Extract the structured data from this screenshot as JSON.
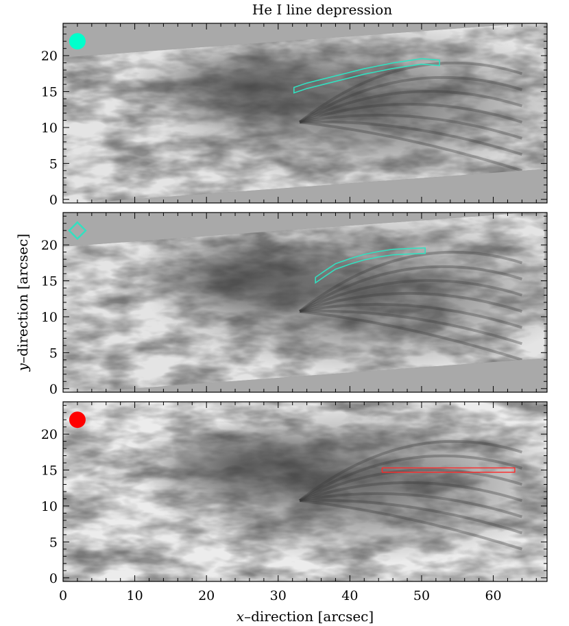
{
  "chart_data": [
    {
      "type": "heatmap",
      "panel": 1,
      "title": "He I line depression",
      "xlim": [
        0,
        67.5
      ],
      "ylim": [
        -0.5,
        24.5
      ],
      "xticks": [
        0,
        10,
        20,
        30,
        40,
        50,
        60
      ],
      "yticks": [
        0,
        5,
        10,
        15,
        20
      ],
      "marker": {
        "shape": "filled-circle",
        "x": 2,
        "y": 22,
        "color": "#00ffcc"
      },
      "contour": {
        "color": "#33e0c0",
        "points": [
          [
            32.2,
            15.2
          ],
          [
            34,
            15.8
          ],
          [
            36,
            16.3
          ],
          [
            38,
            16.8
          ],
          [
            40,
            17.3
          ],
          [
            42,
            17.8
          ],
          [
            44,
            18.2
          ],
          [
            46,
            18.6
          ],
          [
            48,
            18.9
          ],
          [
            50,
            19.2
          ],
          [
            52.5,
            19.0
          ]
        ]
      },
      "colormap": "gray",
      "gray_corners": true
    },
    {
      "type": "heatmap",
      "panel": 2,
      "xlim": [
        0,
        67.5
      ],
      "ylim": [
        -0.5,
        24.5
      ],
      "xticks": [
        0,
        10,
        20,
        30,
        40,
        50,
        60
      ],
      "yticks": [
        0,
        5,
        10,
        15,
        20
      ],
      "marker": {
        "shape": "open-diamond",
        "x": 2,
        "y": 22,
        "color": "#33e0c0"
      },
      "contour": {
        "color": "#33e0c0",
        "points": [
          [
            35.2,
            15.1
          ],
          [
            36.5,
            16.0
          ],
          [
            38,
            17.0
          ],
          [
            40,
            17.7
          ],
          [
            42,
            18.3
          ],
          [
            44,
            18.7
          ],
          [
            46,
            19.0
          ],
          [
            48,
            19.1
          ],
          [
            50.5,
            19.2
          ]
        ]
      },
      "colormap": "gray",
      "gray_corners": true
    },
    {
      "type": "heatmap",
      "panel": 3,
      "xlim": [
        0,
        67.5
      ],
      "ylim": [
        -0.5,
        24.5
      ],
      "xticks": [
        0,
        10,
        20,
        30,
        40,
        50,
        60
      ],
      "yticks": [
        0,
        5,
        10,
        15,
        20
      ],
      "marker": {
        "shape": "filled-circle",
        "x": 2,
        "y": 22,
        "color": "#ff0000"
      },
      "box": {
        "color": "#ff2a2a",
        "x0": 44.5,
        "x1": 63,
        "y0": 14.7,
        "y1": 15.3
      },
      "colormap": "gray",
      "gray_corners": false
    }
  ],
  "xlabel_italic": "x",
  "xlabel_rest": "–direction  [arcsec]",
  "ylabel_italic": "y",
  "ylabel_rest": "–direction  [arcsec]"
}
